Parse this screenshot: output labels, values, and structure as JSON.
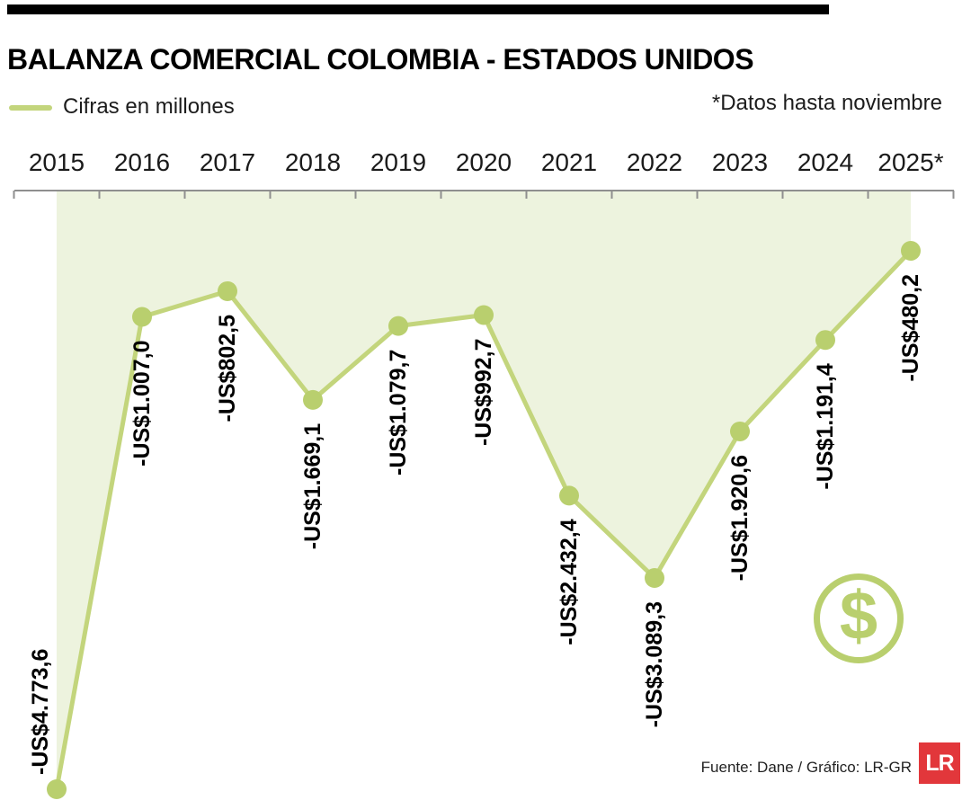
{
  "header": {
    "title": "BALANZA COMERCIAL COLOMBIA - ESTADOS UNIDOS"
  },
  "legend": {
    "label": "Cifras en millones",
    "note": "*Datos hasta noviembre"
  },
  "footer": {
    "source": "Fuente: Dane / Gráfico: LR-GR",
    "logo": "LR"
  },
  "icons": {
    "dollar": "$"
  },
  "colors": {
    "line": "#c3d57c",
    "fill": "#edf3de",
    "marker": "#b9cf6e",
    "axis": "#8f8f8f",
    "year_label": "#1b1b1b",
    "value_label": "#000000",
    "logo_red": "#e2373b"
  },
  "chart_data": {
    "type": "line",
    "title": "BALANZA COMERCIAL COLOMBIA - ESTADOS UNIDOS",
    "subtitle": "Cifras en millones",
    "annotation": "*Datos hasta noviembre",
    "categories": [
      "2015",
      "2016",
      "2017",
      "2018",
      "2019",
      "2020",
      "2021",
      "2022",
      "2023",
      "2024",
      "2025*"
    ],
    "values": [
      -4773.6,
      -1007.0,
      -802.5,
      -1669.1,
      -1079.7,
      -992.7,
      -2432.4,
      -3089.3,
      -1920.6,
      -1191.4,
      -480.2
    ],
    "labels": [
      "-US$4.773,6",
      "-US$1.007,0",
      "-US$802,5",
      "-US$1.669,1",
      "-US$1.079,7",
      "-US$992,7",
      "-US$2.432,4",
      "-US$3.089,3",
      "-US$1.920,6",
      "-US$1.191,4",
      "-US$480,2"
    ],
    "label_side": [
      "above",
      "below",
      "below",
      "below",
      "below",
      "below",
      "below",
      "below",
      "below",
      "below",
      "below"
    ],
    "xlabel": "",
    "ylabel": "",
    "ylim": [
      -4900,
      0
    ],
    "grid": false,
    "legend_position": "top-left",
    "area_fill": true,
    "axis_position": "top"
  }
}
